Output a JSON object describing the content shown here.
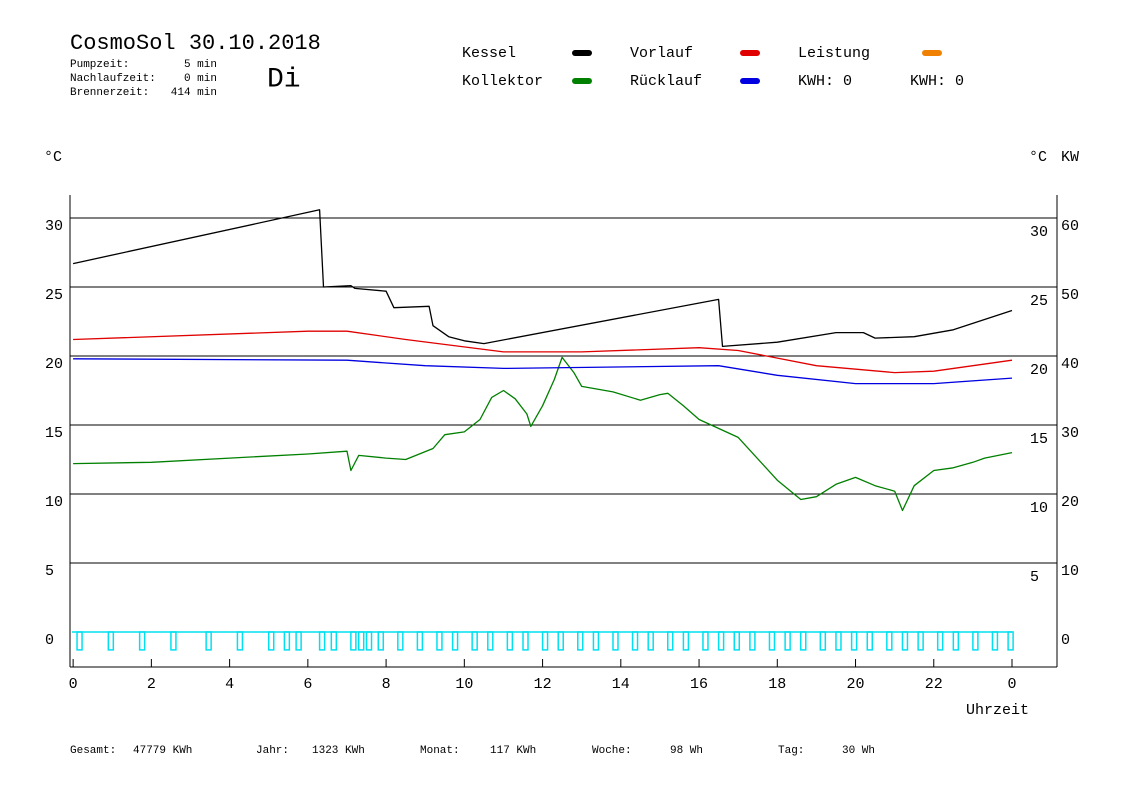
{
  "chart_data": {
    "type": "line",
    "title": "CosmoSol 30.10.2018",
    "weekday": "Di",
    "info": [
      {
        "label": "Pumpzeit:",
        "value": "5 min"
      },
      {
        "label": "Nachlaufzeit:",
        "value": "0 min"
      },
      {
        "label": "Brennerzeit:",
        "value": "414 min"
      }
    ],
    "ylabel": "°C",
    "y2label_celsius": "°C",
    "y2label": "KW",
    "xlabel": "Uhrzeit",
    "xlim": [
      -0.08,
      25.15
    ],
    "xticks": [
      0,
      2,
      4,
      6,
      8,
      10,
      12,
      14,
      16,
      18,
      20,
      22,
      {
        "value": 24,
        "label": "0"
      }
    ],
    "ylim": [
      -2.54,
      31.67
    ],
    "yticks": [
      0,
      5,
      10,
      15,
      20,
      25,
      30
    ],
    "y2lim": [
      -5.08,
      63.34
    ],
    "y2ticks": [
      0,
      10,
      20,
      30,
      40,
      50,
      60
    ],
    "y2color": "#e08a00",
    "grid": true,
    "series": [
      {
        "name": "Kessel",
        "color": "#000000",
        "x": [
          0,
          6.3,
          6.4,
          7.1,
          7.2,
          8.0,
          8.2,
          9.1,
          9.2,
          9.6,
          10.0,
          10.5,
          16.5,
          16.6,
          18.0,
          19.5,
          20.2,
          20.5,
          21.5,
          22.5,
          24.0
        ],
        "values": [
          26.7,
          30.6,
          25.0,
          25.1,
          24.9,
          24.7,
          23.5,
          23.6,
          22.2,
          21.4,
          21.1,
          20.9,
          24.1,
          20.7,
          21.0,
          21.7,
          21.7,
          21.3,
          21.4,
          21.9,
          23.3
        ]
      },
      {
        "name": "Kollektor",
        "color": "#008000",
        "x": [
          0,
          2,
          4,
          6,
          7,
          7.1,
          7.3,
          8,
          8.5,
          9.2,
          9.5,
          10.0,
          10.4,
          10.7,
          11.0,
          11.3,
          11.6,
          11.7,
          12.0,
          12.3,
          12.5,
          12.8,
          13.0,
          13.8,
          14.5,
          15.0,
          15.2,
          15.6,
          16,
          17,
          18,
          18.6,
          19,
          19.5,
          20,
          20.5,
          21,
          21.2,
          21.5,
          22,
          22.5,
          23,
          23.3,
          24
        ],
        "values": [
          12.2,
          12.3,
          12.6,
          12.9,
          13.1,
          11.7,
          12.8,
          12.6,
          12.5,
          13.3,
          14.3,
          14.5,
          15.4,
          17.0,
          17.5,
          16.9,
          15.8,
          14.9,
          16.4,
          18.3,
          19.9,
          18.8,
          17.8,
          17.4,
          16.8,
          17.2,
          17.3,
          16.4,
          15.4,
          14.1,
          11.0,
          9.6,
          9.8,
          10.7,
          11.2,
          10.6,
          10.2,
          8.8,
          10.6,
          11.7,
          11.9,
          12.3,
          12.6,
          13.0
        ]
      },
      {
        "name": "Vorlauf",
        "color": "#e00000",
        "x": [
          0,
          6,
          7,
          8.5,
          11,
          13,
          16,
          17,
          19,
          21,
          22,
          24
        ],
        "values": [
          21.2,
          21.8,
          21.8,
          21.2,
          20.3,
          20.3,
          20.6,
          20.4,
          19.3,
          18.8,
          18.9,
          19.7
        ]
      },
      {
        "name": "Rücklauf",
        "color": "#0000e0",
        "x": [
          0,
          7,
          9,
          11,
          16.5,
          18,
          20,
          22,
          24
        ],
        "values": [
          19.8,
          19.7,
          19.3,
          19.1,
          19.3,
          18.6,
          18.0,
          18.0,
          18.4
        ]
      }
    ],
    "power": {
      "name": "Leistung",
      "color": "#f08000"
    },
    "kwh": [
      {
        "label": "KWH: 0",
        "color": "#e08a00"
      },
      {
        "label": "KWH: 0",
        "color": "#800080"
      }
    ],
    "pump": {
      "color": "#00e0f0",
      "depth": -1.3,
      "x": [
        0.1,
        0.9,
        1.7,
        2.5,
        3.4,
        4.2,
        5.0,
        5.4,
        5.7,
        6.3,
        6.6,
        7.1,
        7.3,
        7.5,
        7.8,
        8.3,
        8.8,
        9.3,
        9.7,
        10.2,
        10.6,
        11.1,
        11.5,
        12.0,
        12.4,
        12.9,
        13.3,
        13.8,
        14.3,
        14.7,
        15.2,
        15.6,
        16.1,
        16.5,
        16.9,
        17.3,
        17.8,
        18.2,
        18.6,
        19.1,
        19.5,
        19.9,
        20.3,
        20.8,
        21.2,
        21.6,
        22.1,
        22.5,
        23.0,
        23.5,
        23.9
      ]
    },
    "footer": [
      {
        "label": "Gesamt:",
        "value": "47779 KWh"
      },
      {
        "label": "Jahr:",
        "value": "1323 KWh"
      },
      {
        "label": "Monat:",
        "value": "117 KWh"
      },
      {
        "label": "Woche:",
        "value": "98 Wh"
      },
      {
        "label": "Tag:",
        "value": "30 Wh"
      }
    ]
  }
}
